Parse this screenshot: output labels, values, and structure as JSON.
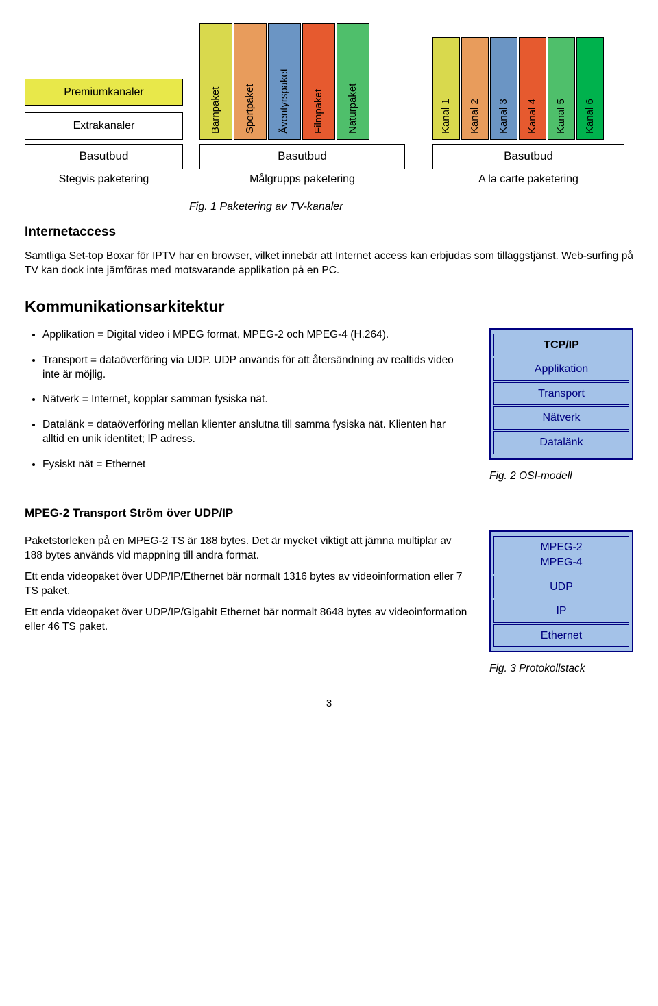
{
  "fig1": {
    "left_boxes": [
      {
        "label": "Premiumkanaler",
        "bg": "#e8e84a"
      },
      {
        "label": "Extrakanaler",
        "bg": "#ffffff"
      }
    ],
    "mid_boxes": [
      {
        "label": "Barnpaket",
        "bg": "#d9d94d"
      },
      {
        "label": "Sportpaket",
        "bg": "#e89c5c"
      },
      {
        "label": "Äventyrspaket",
        "bg": "#6b95c4"
      },
      {
        "label": "Filmpaket",
        "bg": "#e65a2f"
      },
      {
        "label": "Naturpaket",
        "bg": "#4fbf6b"
      }
    ],
    "right_boxes": [
      {
        "label": "Kanal 1",
        "bg": "#d9d94d"
      },
      {
        "label": "Kanal 2",
        "bg": "#e89c5c"
      },
      {
        "label": "Kanal 3",
        "bg": "#6b95c4"
      },
      {
        "label": "Kanal 4",
        "bg": "#e65a2f"
      },
      {
        "label": "Kanal 5",
        "bg": "#4fbf6b"
      },
      {
        "label": "Kanal 6",
        "bg": "#00b24d"
      }
    ],
    "basutbud_label": "Basutbud",
    "sub_labels": [
      "Stegvis paketering",
      "Målgrupps paketering",
      "A la carte paketering"
    ],
    "caption": "Fig. 1 Paketering av TV-kanaler"
  },
  "intro": {
    "heading": "Internetaccess",
    "para": "Samtliga Set-top Boxar för IPTV har en browser, vilket innebär att Internet access kan erbjudas som tilläggstjänst. Web-surfing på TV kan dock inte jämföras med motsvarande applikation på en PC."
  },
  "komm": {
    "heading": "Kommunikationsarkitektur",
    "bullets": [
      "Applikation = Digital video i MPEG format, MPEG-2 och MPEG-4 (H.264).",
      "Transport = dataöverföring via UDP. UDP används för att återsändning av realtids video inte är möjlig.",
      "Nätverk = Internet, kopplar samman fysiska nät.",
      "Datalänk = dataöverföring mellan klienter anslutna till samma fysiska nät. Klienten har alltid en unik identitet; IP adress.",
      "Fysiskt nät = Ethernet"
    ],
    "stack": {
      "head": "TCP/IP",
      "rows": [
        "Applikation",
        "Transport",
        "Nätverk",
        "Datalänk"
      ],
      "caption": "Fig. 2 OSI-modell",
      "border": "#000080",
      "bg": "#a4c2e8",
      "text": "#000080"
    }
  },
  "mpeg": {
    "heading": "MPEG-2 Transport Ström över UDP/IP",
    "paras": [
      "Paketstorleken på en MPEG-2 TS är 188 bytes. Det är mycket viktigt att jämna multiplar av 188 bytes används vid mappning till andra format.",
      "Ett enda videopaket över UDP/IP/Ethernet bär normalt 1316 bytes av videoinformation eller 7 TS paket.",
      "Ett enda videopaket över UDP/IP/Gigabit Ethernet bär normalt 8648 bytes av videoinformation eller 46 TS paket."
    ],
    "stack": {
      "rows": [
        "MPEG-2\nMPEG-4",
        "UDP",
        "IP",
        "Ethernet"
      ],
      "caption": "Fig. 3 Protokollstack",
      "border": "#000080",
      "bg": "#a4c2e8",
      "text": "#000080"
    }
  },
  "page_number": "3"
}
